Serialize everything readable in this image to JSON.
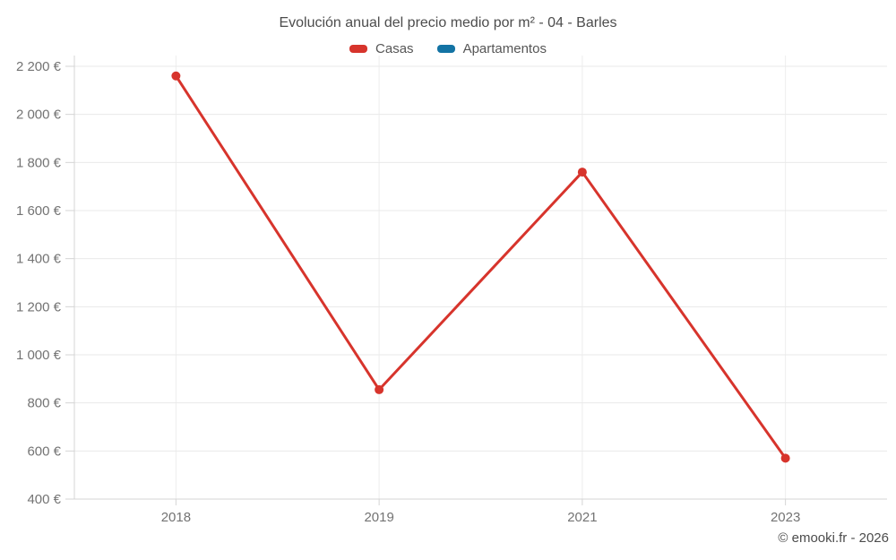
{
  "chart_data": {
    "type": "line",
    "title": "Evolución anual del precio medio por m² - 04 - Barles",
    "categories": [
      "2018",
      "2019",
      "2021",
      "2023"
    ],
    "series": [
      {
        "name": "Casas",
        "color": "#d7342c",
        "values": [
          2160,
          855,
          1760,
          570
        ]
      },
      {
        "name": "Apartamentos",
        "color": "#1373a4",
        "values": [
          null,
          null,
          null,
          null
        ]
      }
    ],
    "xlabel": "",
    "ylabel": "",
    "ylim": [
      400,
      2200
    ],
    "ytick_step": 200,
    "ytick_format": "{value} €",
    "grid": true,
    "legend_position": "top",
    "marker_radius": 5,
    "line_width": 3
  },
  "footer": {
    "copyright": "© emooki.fr - 2026"
  }
}
